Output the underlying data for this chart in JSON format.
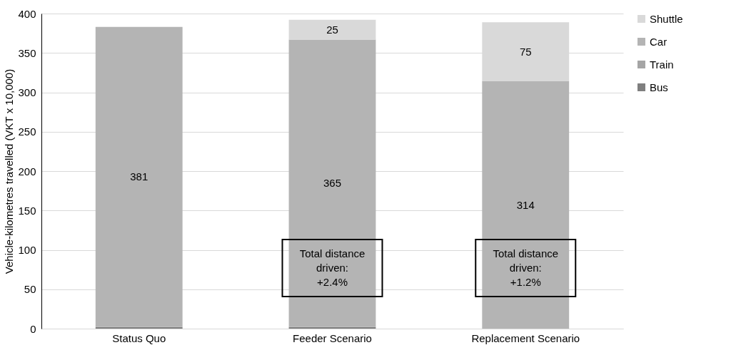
{
  "chart_data": {
    "type": "bar",
    "stacked": true,
    "ylabel": "Vehicle-kilometres travelled (VKT x 10,000)",
    "categories": [
      "Status Quo",
      "Feeder Scenario",
      "Replacement Scenario"
    ],
    "series": [
      {
        "name": "Bus",
        "color": "#7f7f7f",
        "values": [
          2,
          2,
          0
        ]
      },
      {
        "name": "Train",
        "color": "#a5a5a5",
        "values": [
          null,
          null,
          null
        ]
      },
      {
        "name": "Car",
        "color": "#b4b4b4",
        "values": [
          381,
          365,
          314
        ],
        "value_labels": [
          "381",
          "365",
          "314"
        ]
      },
      {
        "name": "Shuttle",
        "color": "#d9d9d9",
        "values": [
          0,
          25,
          75
        ],
        "value_labels": [
          null,
          "25",
          "75"
        ]
      }
    ],
    "ylim": [
      0,
      400
    ],
    "yticks": [
      0,
      50,
      100,
      150,
      200,
      250,
      300,
      350,
      400
    ],
    "grid": "y",
    "legend": "right",
    "annotations": [
      "Total distance\ndriven:\n+2.4%",
      "Total distance\ndriven:\n+1.2%"
    ]
  }
}
